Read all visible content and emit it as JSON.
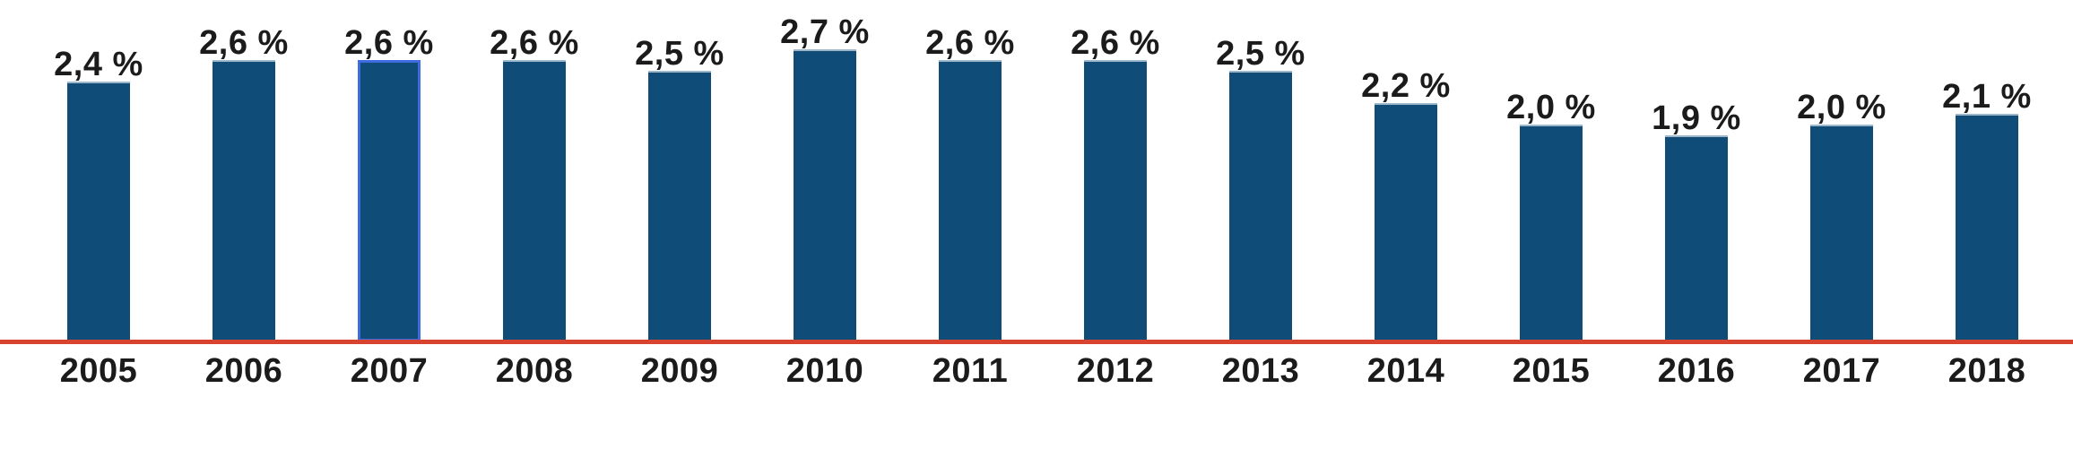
{
  "chart_data": {
    "type": "bar",
    "categories": [
      "2005",
      "2006",
      "2007",
      "2008",
      "2009",
      "2010",
      "2011",
      "2012",
      "2013",
      "2014",
      "2015",
      "2016",
      "2017",
      "2018"
    ],
    "values": [
      2.4,
      2.6,
      2.6,
      2.6,
      2.5,
      2.7,
      2.6,
      2.6,
      2.5,
      2.2,
      2.0,
      1.9,
      2.0,
      2.1
    ],
    "value_labels": [
      "2,4 %",
      "2,6 %",
      "2,6 %",
      "2,6 %",
      "2,5 %",
      "2,7 %",
      "2,6 %",
      "2,6 %",
      "2,5 %",
      "2,2 %",
      "2,0 %",
      "1,9 %",
      "2,0 %",
      "2,1 %"
    ],
    "title": "",
    "xlabel": "",
    "ylabel": "",
    "ylim": [
      0,
      2.7
    ],
    "grid": false,
    "legend": false,
    "y_axis_visible": false,
    "highlighted_category": "2007",
    "highlighted_index": 2,
    "colors": {
      "bar": "#0F4C78",
      "axis_line": "#D8432F",
      "highlight_border": "#3E6BE0",
      "label_text": "#1B1B1B",
      "background": "#FFFFFF"
    }
  }
}
